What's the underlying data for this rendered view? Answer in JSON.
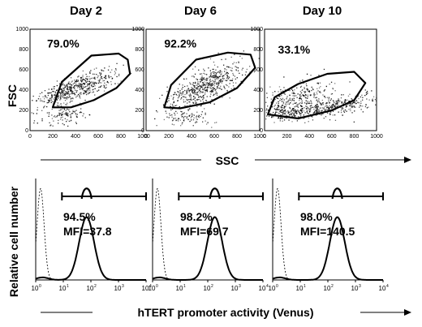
{
  "figure": {
    "day_titles": [
      "Day 2",
      "Day 6",
      "Day 10"
    ],
    "scatter_y_label": "FSC",
    "scatter_x_label": "SSC",
    "hist_y_label": "Relative cell number",
    "hist_x_label": "hTERT promoter activity (Venus)",
    "scatter_tick_labels": [
      "0",
      "200",
      "400",
      "600",
      "800",
      "1000"
    ],
    "hist_tick_labels": [
      "10",
      "10",
      "10",
      "10",
      "10"
    ],
    "hist_tick_exponents": [
      "0",
      "1",
      "2",
      "3",
      "4"
    ]
  },
  "chart_data": [
    {
      "type": "scatter",
      "panel": "Day 2",
      "xlabel": "SSC",
      "ylabel": "FSC",
      "xlim": [
        0,
        1000
      ],
      "ylim": [
        0,
        1000
      ],
      "gate_percent": "79.0%"
    },
    {
      "type": "scatter",
      "panel": "Day 6",
      "xlabel": "SSC",
      "ylabel": "FSC",
      "xlim": [
        0,
        1000
      ],
      "ylim": [
        0,
        1000
      ],
      "gate_percent": "92.2%"
    },
    {
      "type": "scatter",
      "panel": "Day 10",
      "xlabel": "SSC",
      "ylabel": "FSC",
      "xlim": [
        0,
        1000
      ],
      "ylim": [
        0,
        1000
      ],
      "gate_percent": "33.1%"
    },
    {
      "type": "histogram",
      "panel": "Day 2",
      "xlabel": "hTERT promoter activity (Venus)",
      "ylabel": "Relative cell number",
      "x_scale": "log",
      "xlim": [
        1,
        10000
      ],
      "positive_percent": "94.5%",
      "mfi": "MFI=37.8",
      "peak_x": 70,
      "control_peak_x": 1.5
    },
    {
      "type": "histogram",
      "panel": "Day 6",
      "xlabel": "hTERT promoter activity (Venus)",
      "ylabel": "Relative cell number",
      "x_scale": "log",
      "xlim": [
        1,
        10000
      ],
      "positive_percent": "98.2%",
      "mfi": "MFI=69.7",
      "peak_x": 180,
      "control_peak_x": 1.5
    },
    {
      "type": "histogram",
      "panel": "Day 10",
      "xlabel": "hTERT promoter activity (Venus)",
      "ylabel": "Relative cell number",
      "x_scale": "log",
      "xlim": [
        1,
        10000
      ],
      "positive_percent": "98.0%",
      "mfi": "MFI=140.5",
      "peak_x": 220,
      "control_peak_x": 1.5
    }
  ]
}
